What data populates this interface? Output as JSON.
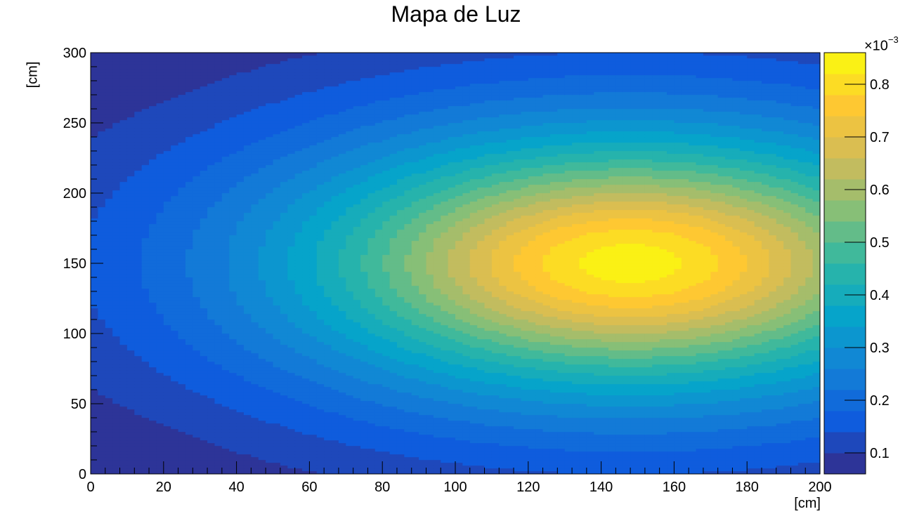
{
  "title": "Mapa de Luz",
  "chart_data": {
    "type": "heatmap",
    "title": "Mapa de Luz",
    "xlabel": "[cm]",
    "ylabel": "[cm]",
    "xlim": [
      0,
      200
    ],
    "ylim": [
      0,
      300
    ],
    "x_ticks": [
      0,
      20,
      40,
      60,
      80,
      100,
      120,
      140,
      160,
      180,
      200
    ],
    "y_ticks": [
      0,
      50,
      100,
      150,
      200,
      250,
      300
    ],
    "z_scale_label": "×10",
    "z_scale_exponent": "−3",
    "z_range": [
      0.06,
      0.86
    ],
    "z_ticks": [
      "0.1",
      "0.2",
      "0.3",
      "0.4",
      "0.5",
      "0.6",
      "0.7",
      "0.8"
    ],
    "z_tick_values": [
      0.1,
      0.2,
      0.3,
      0.4,
      0.5,
      0.6,
      0.7,
      0.8
    ],
    "peak": {
      "x": 148,
      "y": 150,
      "z": 0.84
    },
    "color_levels": 20,
    "colormap": [
      "#352a87",
      "#0f5cdd",
      "#1481d6",
      "#06a4ca",
      "#2eb7a4",
      "#87bf77",
      "#d1bb59",
      "#fec832",
      "#f9fb0e"
    ]
  }
}
